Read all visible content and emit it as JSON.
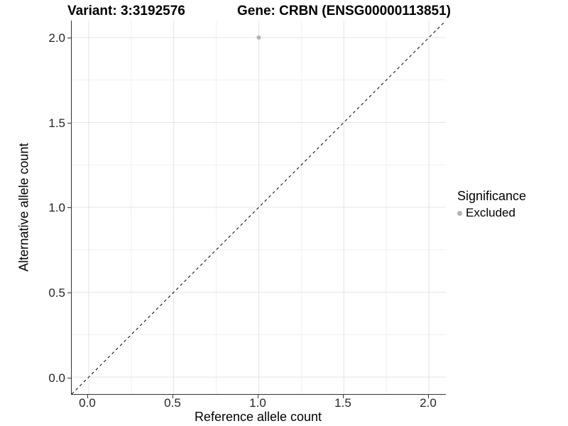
{
  "header": {
    "variant_title": "Variant: 3:3192576",
    "gene_title": "Gene: CRBN (ENSG00000113851)"
  },
  "axes": {
    "x": {
      "label": "Reference allele count",
      "ticks": [
        "0.0",
        "0.5",
        "1.0",
        "1.5",
        "2.0"
      ]
    },
    "y": {
      "label": "Alternative allele count",
      "ticks_top_to_bottom": [
        "2.0",
        "1.5",
        "1.0",
        "0.5",
        "0.0"
      ]
    }
  },
  "legend": {
    "title": "Significance",
    "items": [
      {
        "label": "Excluded",
        "color": "#b3b3b3"
      }
    ]
  },
  "chart_data": {
    "type": "scatter",
    "title": "Variant: 3:3192576  |  Gene: CRBN (ENSG00000113851)",
    "xlabel": "Reference allele count",
    "ylabel": "Alternative allele count",
    "xlim": [
      -0.1,
      2.1
    ],
    "ylim": [
      -0.1,
      2.1
    ],
    "x_major_ticks": [
      0,
      0.5,
      1,
      1.5,
      2
    ],
    "y_major_ticks": [
      0,
      0.5,
      1,
      1.5,
      2
    ],
    "x_minor_ticks": [
      0.25,
      0.75,
      1.25,
      1.75
    ],
    "y_minor_ticks": [
      0.25,
      0.75,
      1.25,
      1.75
    ],
    "grid": true,
    "legend_position": "right",
    "series": [
      {
        "name": "Excluded",
        "color": "#b3b3b3",
        "point_radius": 3,
        "points": [
          {
            "x": 1.0,
            "y": 2.0
          }
        ]
      }
    ],
    "reference_line": {
      "equation": "y = x",
      "style": "dashed",
      "color": "#000000",
      "from": [
        -0.1,
        -0.1
      ],
      "to": [
        2.1,
        2.1
      ]
    }
  }
}
